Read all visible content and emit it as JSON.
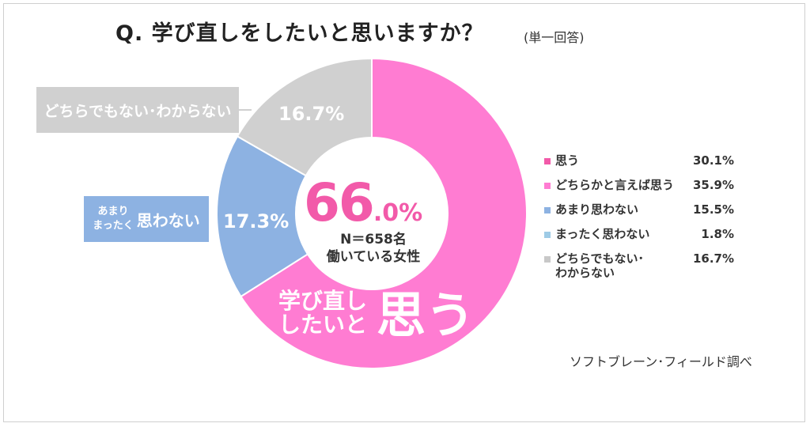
{
  "title": "Q.  学び直しをしたいと思いますか？",
  "title_note": "(単一回答)",
  "callouts": {
    "neither": "どちらでもない･わからない",
    "not_small_1": "あまり",
    "not_small_2": "まったく",
    "not_big": "思わない"
  },
  "center": {
    "value_int": "66",
    "value_dec": ".0%",
    "sample": "N＝658名",
    "population": "働いている女性"
  },
  "inside_text": {
    "line1": "学び直し",
    "line2": "したいと",
    "big": "思う"
  },
  "source": "ソフトブレーン･フィールド調べ",
  "chart_data": {
    "type": "pie",
    "style": "donut",
    "segments": [
      {
        "name": "思う",
        "value": 66.0,
        "label": "",
        "color": "#ff7cd2"
      },
      {
        "name": "思わない",
        "value": 17.3,
        "label": "17.3%",
        "color": "#8db2e2"
      },
      {
        "name": "どちらでもない･わからない",
        "value": 16.7,
        "label": "16.7%",
        "color": "#d0d0d0"
      }
    ],
    "legend": [
      {
        "label": "思う",
        "value": "30.1%",
        "color": "#f25aa9"
      },
      {
        "label": "どちらかと言えば思う",
        "value": "35.9%",
        "color": "#ff7cd2"
      },
      {
        "label": "あまり思わない",
        "value": "15.5%",
        "color": "#8db2e2"
      },
      {
        "label": "まったく思わない",
        "value": "1.8%",
        "color": "#9ecbe6"
      },
      {
        "label": "どちらでもない･\nわからない",
        "value": "16.7%",
        "color": "#c8c8c8"
      }
    ],
    "legend_position": "right"
  }
}
